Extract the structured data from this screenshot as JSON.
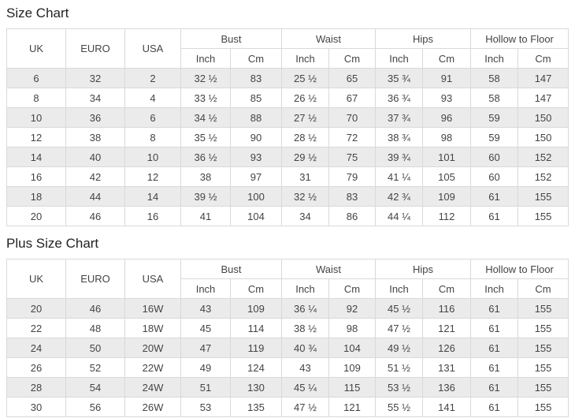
{
  "colors": {
    "row_stripe": "#ebebeb",
    "table_border": "#d9d9d9",
    "text": "#444444",
    "title_text": "#222222"
  },
  "header": {
    "size_cols": [
      "UK",
      "EURO",
      "USA"
    ],
    "measure_groups": [
      "Bust",
      "Waist",
      "Hips",
      "Hollow to Floor"
    ],
    "unit_subcols": [
      "Inch",
      "Cm"
    ]
  },
  "size_chart": {
    "title": "Size Chart",
    "rows": [
      [
        "6",
        "32",
        "2",
        "32 ½",
        "83",
        "25 ½",
        "65",
        "35 ¾",
        "91",
        "58",
        "147"
      ],
      [
        "8",
        "34",
        "4",
        "33 ½",
        "85",
        "26 ½",
        "67",
        "36 ¾",
        "93",
        "58",
        "147"
      ],
      [
        "10",
        "36",
        "6",
        "34 ½",
        "88",
        "27 ½",
        "70",
        "37 ¾",
        "96",
        "59",
        "150"
      ],
      [
        "12",
        "38",
        "8",
        "35 ½",
        "90",
        "28 ½",
        "72",
        "38 ¾",
        "98",
        "59",
        "150"
      ],
      [
        "14",
        "40",
        "10",
        "36 ½",
        "93",
        "29 ½",
        "75",
        "39 ¾",
        "101",
        "60",
        "152"
      ],
      [
        "16",
        "42",
        "12",
        "38",
        "97",
        "31",
        "79",
        "41 ¼",
        "105",
        "60",
        "152"
      ],
      [
        "18",
        "44",
        "14",
        "39 ½",
        "100",
        "32 ½",
        "83",
        "42 ¾",
        "109",
        "61",
        "155"
      ],
      [
        "20",
        "46",
        "16",
        "41",
        "104",
        "34",
        "86",
        "44 ¼",
        "112",
        "61",
        "155"
      ]
    ]
  },
  "plus_size_chart": {
    "title": "Plus Size Chart",
    "rows": [
      [
        "20",
        "46",
        "16W",
        "43",
        "109",
        "36 ¼",
        "92",
        "45 ½",
        "116",
        "61",
        "155"
      ],
      [
        "22",
        "48",
        "18W",
        "45",
        "114",
        "38 ½",
        "98",
        "47 ½",
        "121",
        "61",
        "155"
      ],
      [
        "24",
        "50",
        "20W",
        "47",
        "119",
        "40 ¾",
        "104",
        "49 ½",
        "126",
        "61",
        "155"
      ],
      [
        "26",
        "52",
        "22W",
        "49",
        "124",
        "43",
        "109",
        "51 ½",
        "131",
        "61",
        "155"
      ],
      [
        "28",
        "54",
        "24W",
        "51",
        "130",
        "45 ¼",
        "115",
        "53 ½",
        "136",
        "61",
        "155"
      ],
      [
        "30",
        "56",
        "26W",
        "53",
        "135",
        "47 ½",
        "121",
        "55 ½",
        "141",
        "61",
        "155"
      ]
    ]
  }
}
